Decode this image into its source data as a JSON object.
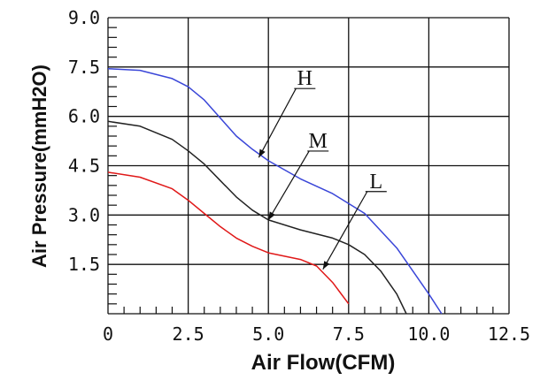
{
  "chart_data": {
    "type": "line",
    "title": "",
    "xlabel": "Air Flow(CFM)",
    "ylabel": "Air Pressure(mmH2O)",
    "xlim": [
      0,
      12.5
    ],
    "ylim": [
      0,
      9.0
    ],
    "x_ticks": [
      0,
      2.5,
      5.0,
      7.5,
      10.0,
      12.5
    ],
    "x_tick_labels": [
      "0",
      "2.5",
      "5.0",
      "7.5",
      "10.0",
      "12.5"
    ],
    "y_ticks": [
      1.5,
      3.0,
      4.5,
      6.0,
      7.5,
      9.0
    ],
    "y_tick_labels": [
      "1.5",
      "3.0",
      "4.5",
      "6.0",
      "7.5",
      "9.0"
    ],
    "grid": true,
    "series": [
      {
        "name": "H",
        "color": "#3a46d8",
        "x": [
          0,
          1.0,
          2.0,
          2.5,
          3.0,
          3.5,
          4.0,
          4.5,
          5.0,
          6.0,
          7.0,
          8.0,
          9.0,
          9.5,
          10.0,
          10.4
        ],
        "y": [
          7.45,
          7.4,
          7.15,
          6.9,
          6.5,
          5.95,
          5.4,
          5.0,
          4.65,
          4.1,
          3.65,
          3.05,
          2.0,
          1.3,
          0.6,
          0
        ]
      },
      {
        "name": "M",
        "color": "#222222",
        "x": [
          0,
          1.0,
          2.0,
          2.5,
          3.0,
          3.5,
          4.0,
          4.5,
          5.0,
          6.0,
          7.0,
          7.5,
          8.0,
          8.5,
          9.0,
          9.3
        ],
        "y": [
          5.85,
          5.7,
          5.3,
          4.95,
          4.55,
          4.05,
          3.55,
          3.15,
          2.85,
          2.55,
          2.3,
          2.1,
          1.8,
          1.3,
          0.6,
          0
        ]
      },
      {
        "name": "L",
        "color": "#e01818",
        "x": [
          0,
          1.0,
          2.0,
          2.5,
          3.0,
          3.5,
          4.0,
          4.5,
          5.0,
          6.0,
          6.5,
          7.0,
          7.5
        ],
        "y": [
          4.3,
          4.15,
          3.8,
          3.45,
          3.05,
          2.65,
          2.3,
          2.05,
          1.85,
          1.65,
          1.45,
          0.95,
          0.3
        ]
      }
    ],
    "annotations": [
      {
        "text": "H",
        "series": "H",
        "point_x": 4.7,
        "point_y": 4.75
      },
      {
        "text": "M",
        "series": "M",
        "point_x": 5.0,
        "point_y": 2.85
      },
      {
        "text": "L",
        "series": "L",
        "point_x": 6.7,
        "point_y": 1.35
      }
    ]
  }
}
